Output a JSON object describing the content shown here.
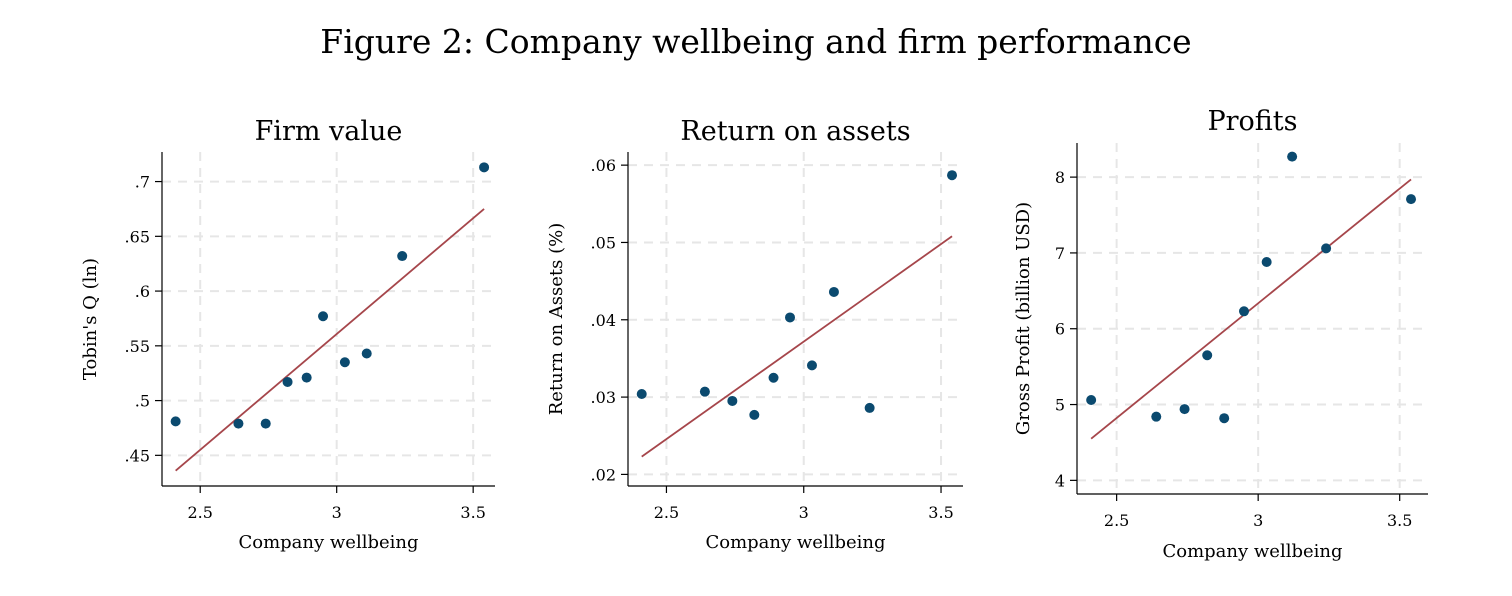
{
  "figure": {
    "title": "Figure 2: Company wellbeing and firm performance"
  },
  "style": {
    "point_color": "#0b4a6f",
    "line_color": "#a6464b",
    "grid_color": "#e6e6e6"
  },
  "chart_data": [
    {
      "type": "scatter",
      "title": "Firm value",
      "xlabel": "Company wellbeing",
      "ylabel": "Tobin's Q (ln)",
      "xlim": [
        2.36,
        3.58
      ],
      "ylim": [
        0.422,
        0.727
      ],
      "xticks": [
        2.5,
        3,
        3.5
      ],
      "xtick_labels": [
        "2.5",
        "3",
        "3.5"
      ],
      "yticks": [
        0.45,
        0.5,
        0.55,
        0.6,
        0.65,
        0.7
      ],
      "ytick_labels": [
        ".45",
        ".5",
        ".55",
        ".6",
        ".65",
        ".7"
      ],
      "grid": true,
      "x": [
        2.41,
        2.64,
        2.74,
        2.82,
        2.89,
        2.95,
        3.03,
        3.11,
        3.24,
        3.54
      ],
      "y": [
        0.481,
        0.479,
        0.479,
        0.517,
        0.521,
        0.577,
        0.535,
        0.543,
        0.632,
        0.713
      ],
      "fit": {
        "x": [
          2.41,
          3.54
        ],
        "y": [
          0.436,
          0.675
        ]
      }
    },
    {
      "type": "scatter",
      "title": "Return on assets",
      "xlabel": "Company wellbeing",
      "ylabel": "Return on Assets (%)",
      "xlim": [
        2.36,
        3.58
      ],
      "ylim": [
        0.0185,
        0.0617
      ],
      "xticks": [
        2.5,
        3,
        3.5
      ],
      "xtick_labels": [
        "2.5",
        "3",
        "3.5"
      ],
      "yticks": [
        0.02,
        0.03,
        0.04,
        0.05,
        0.06
      ],
      "ytick_labels": [
        ".02",
        ".03",
        ".04",
        ".05",
        ".06"
      ],
      "grid": true,
      "x": [
        2.41,
        2.64,
        2.74,
        2.82,
        2.89,
        2.95,
        3.03,
        3.11,
        3.24,
        3.54
      ],
      "y": [
        0.0304,
        0.0307,
        0.0295,
        0.0277,
        0.0325,
        0.0403,
        0.0341,
        0.0436,
        0.0286,
        0.0587
      ],
      "fit": {
        "x": [
          2.41,
          3.54
        ],
        "y": [
          0.0223,
          0.0508
        ]
      }
    },
    {
      "type": "scatter",
      "title": "Profits",
      "xlabel": "Company wellbeing",
      "ylabel": "Gross Profit (billion USD)",
      "xlim": [
        2.36,
        3.6
      ],
      "ylim": [
        3.82,
        8.45
      ],
      "xticks": [
        2.5,
        3,
        3.5
      ],
      "xtick_labels": [
        "2.5",
        "3",
        "3.5"
      ],
      "yticks": [
        4,
        5,
        6,
        7,
        8
      ],
      "ytick_labels": [
        "4",
        "5",
        "6",
        "7",
        "8"
      ],
      "grid": true,
      "x": [
        2.41,
        2.64,
        2.74,
        2.82,
        2.88,
        2.95,
        3.03,
        3.12,
        3.24,
        3.54
      ],
      "y": [
        5.06,
        4.84,
        4.94,
        5.65,
        4.82,
        6.23,
        6.88,
        8.27,
        7.06,
        7.71
      ],
      "fit": {
        "x": [
          2.41,
          3.54
        ],
        "y": [
          4.55,
          7.97
        ]
      }
    }
  ]
}
